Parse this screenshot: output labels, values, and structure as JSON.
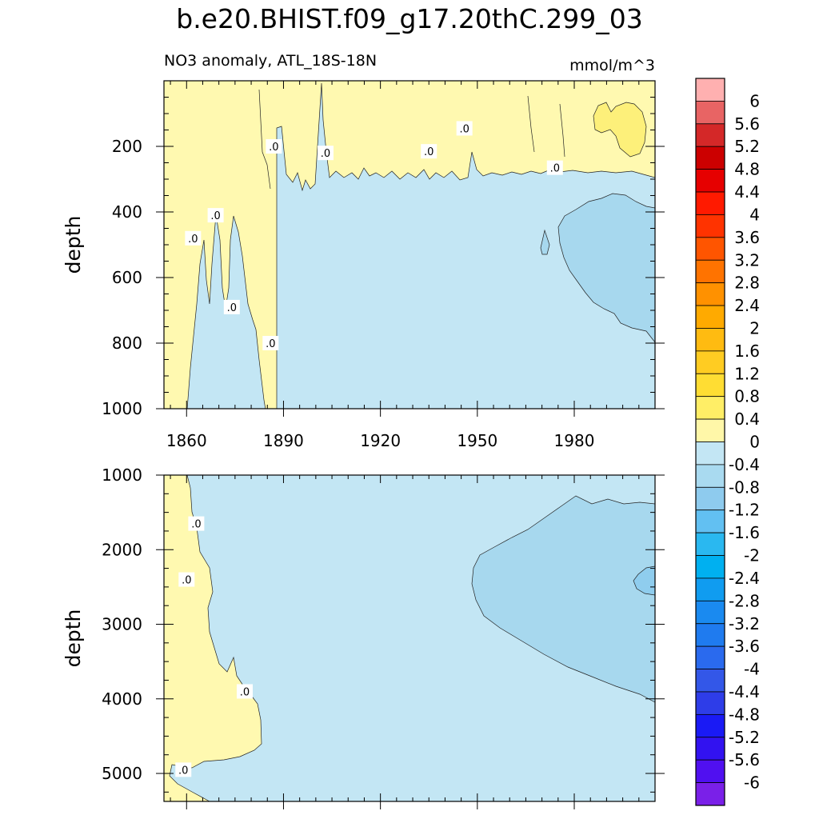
{
  "figure": {
    "title": "b.e20.BHIST.f09_g17.20thC.299_03",
    "subtitle_left": "NO3 anomaly, ATL_18S-18N",
    "subtitle_right": "mmol/m^3"
  },
  "colors": {
    "positive_fill": "#fff9b0",
    "positive_strong_fill": "#fdf07a",
    "negative_fill": "#c3e6f4",
    "negative_mid_fill": "#a7d8ee",
    "negative_strong_fill": "#8fcdee",
    "contour_line": "#222222"
  },
  "chart_data": [
    {
      "type": "heatmap",
      "panel": "upper",
      "xlabel": "",
      "ylabel": "depth",
      "x_ticks": [
        1860,
        1890,
        1920,
        1950,
        1980
      ],
      "x_tick_labels": [
        "1860",
        "1890",
        "1920",
        "1950",
        "1980"
      ],
      "xlim": [
        1853,
        2005
      ],
      "y_ticks": [
        200,
        400,
        600,
        800,
        1000
      ],
      "y_tick_labels": [
        "200",
        "400",
        "600",
        "800",
        "1000"
      ],
      "ylim": [
        0,
        1000
      ],
      "y_reversed": true,
      "contour_labels": [
        {
          "text": ".0",
          "x": 1862,
          "y": 480
        },
        {
          "text": ".0",
          "x": 1869,
          "y": 410
        },
        {
          "text": ".0",
          "x": 1874,
          "y": 690
        },
        {
          "text": ".0",
          "x": 1887,
          "y": 200
        },
        {
          "text": ".0",
          "x": 1886,
          "y": 800
        },
        {
          "text": ".0",
          "x": 1903,
          "y": 220
        },
        {
          "text": ".0",
          "x": 1935,
          "y": 215
        },
        {
          "text": ".0",
          "x": 1946,
          "y": 145
        },
        {
          "text": ".0",
          "x": 1974,
          "y": 265
        }
      ],
      "regions": {
        "positive_upper": {
          "value_range": [
            0,
            0.4
          ],
          "depth_range": [
            0,
            300
          ],
          "years": [
            1853,
            2005
          ]
        },
        "positive_core": {
          "value_range": [
            0.4,
            0.8
          ],
          "depth_range": [
            90,
            220
          ],
          "years": [
            1994,
            2005
          ]
        },
        "negative_core": {
          "value_range": [
            -0.8,
            -0.4
          ],
          "depth_range": [
            350,
            800
          ],
          "years": [
            1969,
            2005
          ]
        }
      }
    },
    {
      "type": "heatmap",
      "panel": "lower",
      "xlabel": "",
      "ylabel": "depth",
      "x_ticks": [
        1860,
        1890,
        1920,
        1950,
        1980
      ],
      "xlim": [
        1853,
        2005
      ],
      "y_ticks": [
        1000,
        2000,
        3000,
        4000,
        5000
      ],
      "y_tick_labels": [
        "1000",
        "2000",
        "3000",
        "4000",
        "5000"
      ],
      "ylim": [
        1000,
        5375
      ],
      "y_reversed": true,
      "contour_labels": [
        {
          "text": ".0",
          "x": 1863,
          "y": 1650
        },
        {
          "text": ".0",
          "x": 1860,
          "y": 2400
        },
        {
          "text": ".0",
          "x": 1878,
          "y": 3900
        },
        {
          "text": ".0",
          "x": 1859,
          "y": 4950
        }
      ],
      "regions": {
        "negative_core": {
          "value_range": [
            -0.8,
            -0.4
          ],
          "depth_range": [
            1300,
            4000
          ],
          "years": [
            1951,
            2005
          ]
        },
        "negative_strong": {
          "value_range": [
            -1.2,
            -0.8
          ],
          "depth_range": [
            2200,
            2800
          ],
          "years": [
            1998,
            2005
          ]
        }
      }
    }
  ],
  "colorbar": {
    "labels": [
      "6",
      "5.6",
      "5.2",
      "4.8",
      "4.4",
      "4",
      "3.6",
      "3.2",
      "2.8",
      "2.4",
      "2",
      "1.6",
      "1.2",
      "0.8",
      "0.4",
      "0",
      "-0.4",
      "-0.8",
      "-1.2",
      "-1.6",
      "-2",
      "-2.4",
      "-2.8",
      "-3.2",
      "-3.6",
      "-4",
      "-4.4",
      "-4.8",
      "-5.2",
      "-5.6",
      "-6"
    ],
    "colors": [
      "#ffb0b0",
      "#e86464",
      "#d42828",
      "#cc0000",
      "#e60000",
      "#ff1a00",
      "#ff3300",
      "#ff5500",
      "#ff7300",
      "#ff9100",
      "#ffaa00",
      "#ffbb11",
      "#ffcc22",
      "#ffdd33",
      "#ffee66",
      "#fff7a8",
      "#c3e6f4",
      "#a9daf0",
      "#8ecbee",
      "#62c0f2",
      "#2ab8f0",
      "#00b0f0",
      "#109cf0",
      "#1a8af0",
      "#1f7bef",
      "#2a6aee",
      "#3357e8",
      "#2e3de8",
      "#1a1af5",
      "#3212f0",
      "#5010f0",
      "#7a20e8"
    ]
  }
}
